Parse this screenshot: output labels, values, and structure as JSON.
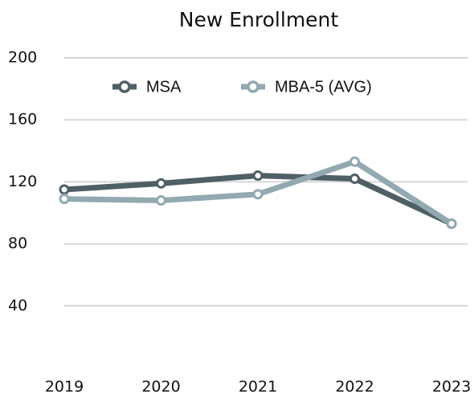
{
  "chart_data": {
    "type": "line",
    "title": "New Enrollment",
    "categories": [
      "2019",
      "2020",
      "2021",
      "2022",
      "2023"
    ],
    "series": [
      {
        "name": "MSA",
        "color": "#4f5f66",
        "values": [
          115,
          119,
          124,
          122,
          93
        ]
      },
      {
        "name": "MBA-5 (AVG)",
        "color": "#92a9b1",
        "values": [
          109,
          108,
          112,
          133,
          93
        ]
      }
    ],
    "ylim": [
      0,
      200
    ],
    "yticks": [
      40,
      80,
      120,
      160,
      200
    ],
    "grid": true,
    "legend": "top"
  }
}
